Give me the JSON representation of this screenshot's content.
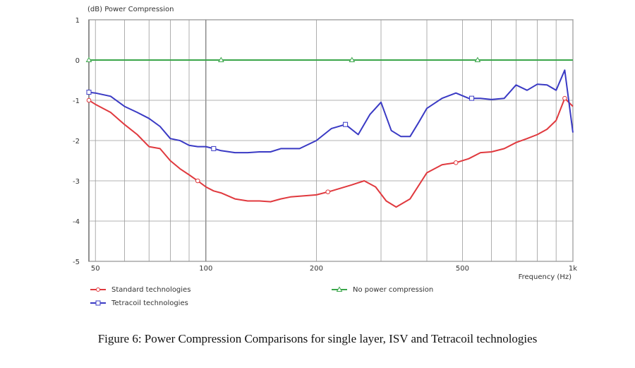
{
  "caption": "Figure 6: Power Compression Comparisons for single layer, ISV and Tetracoil technologies",
  "chart_data": {
    "type": "line",
    "title": "",
    "ylabel": "(dB)  Power Compression",
    "xlabel": "Frequency  (Hz)",
    "x_scale": "log",
    "xlim": [
      48,
      1000
    ],
    "ylim": [
      -5,
      1
    ],
    "x_ticks": [
      {
        "value": 50,
        "label": "50"
      },
      {
        "value": 100,
        "label": "100"
      },
      {
        "value": 200,
        "label": "200"
      },
      {
        "value": 500,
        "label": "500"
      },
      {
        "value": 1000,
        "label": "1k"
      }
    ],
    "y_ticks": [
      {
        "value": 1,
        "label": "1"
      },
      {
        "value": 0,
        "label": "0"
      },
      {
        "value": -1,
        "label": "-1"
      },
      {
        "value": -2,
        "label": "-2"
      },
      {
        "value": -3,
        "label": "-3"
      },
      {
        "value": -4,
        "label": "-4"
      },
      {
        "value": -5,
        "label": "-5"
      }
    ],
    "grid": true,
    "legend_position": "bottom",
    "series": [
      {
        "name": "Standard technologies",
        "color": "#e0393e",
        "marker": "circle",
        "x": [
          48,
          50,
          55,
          60,
          65,
          70,
          75,
          80,
          85,
          90,
          95,
          100,
          105,
          110,
          120,
          130,
          140,
          150,
          160,
          170,
          180,
          200,
          220,
          250,
          270,
          290,
          310,
          330,
          360,
          400,
          440,
          480,
          520,
          560,
          600,
          650,
          700,
          750,
          800,
          850,
          900,
          950,
          1000
        ],
        "y": [
          -1.0,
          -1.1,
          -1.3,
          -1.6,
          -1.85,
          -2.15,
          -2.2,
          -2.5,
          -2.7,
          -2.85,
          -3.0,
          -3.15,
          -3.25,
          -3.3,
          -3.45,
          -3.5,
          -3.5,
          -3.52,
          -3.45,
          -3.4,
          -3.38,
          -3.35,
          -3.25,
          -3.1,
          -3.0,
          -3.15,
          -3.5,
          -3.65,
          -3.45,
          -2.8,
          -2.6,
          -2.55,
          -2.45,
          -2.3,
          -2.28,
          -2.2,
          -2.05,
          -1.95,
          -1.85,
          -1.72,
          -1.5,
          -0.95,
          -1.15
        ],
        "marker_x": [
          48,
          95,
          215,
          480,
          950
        ]
      },
      {
        "name": "Tetracoil technologies",
        "color": "#3a3ac4",
        "marker": "square",
        "x": [
          48,
          50,
          55,
          60,
          65,
          70,
          75,
          80,
          85,
          90,
          95,
          100,
          105,
          110,
          120,
          130,
          140,
          150,
          160,
          170,
          180,
          200,
          220,
          240,
          260,
          280,
          300,
          320,
          340,
          360,
          380,
          400,
          440,
          480,
          520,
          560,
          600,
          650,
          700,
          750,
          800,
          850,
          900,
          950,
          1000
        ],
        "y": [
          -0.8,
          -0.82,
          -0.9,
          -1.15,
          -1.3,
          -1.45,
          -1.65,
          -1.95,
          -2.0,
          -2.12,
          -2.15,
          -2.15,
          -2.2,
          -2.25,
          -2.3,
          -2.3,
          -2.28,
          -2.28,
          -2.2,
          -2.2,
          -2.2,
          -2.0,
          -1.7,
          -1.6,
          -1.85,
          -1.35,
          -1.05,
          -1.75,
          -1.9,
          -1.9,
          -1.55,
          -1.2,
          -0.95,
          -0.82,
          -0.95,
          -0.95,
          -0.98,
          -0.95,
          -0.62,
          -0.75,
          -0.6,
          -0.62,
          -0.75,
          -0.25,
          -1.8
        ],
        "marker_x": [
          48,
          105,
          240,
          530
        ]
      },
      {
        "name": "No power compression",
        "color": "#3aa64a",
        "marker": "triangle",
        "x": [
          48,
          1000
        ],
        "y": [
          0,
          0
        ],
        "marker_x": [
          48,
          110,
          250,
          550
        ]
      }
    ]
  }
}
